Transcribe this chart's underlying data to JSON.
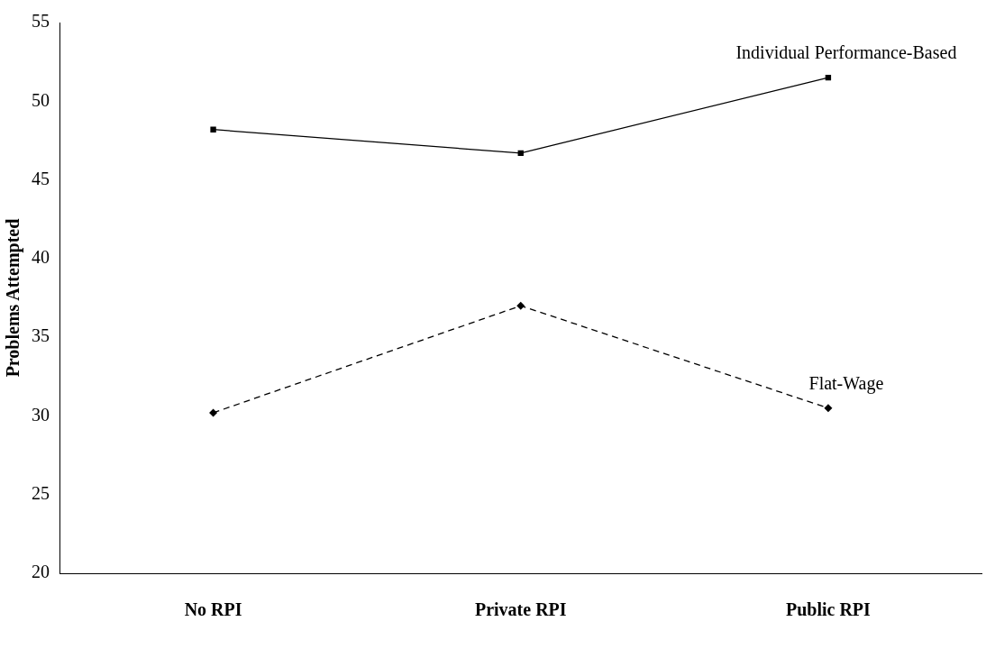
{
  "chart_data": {
    "type": "line",
    "ylabel": "Problems Attempted",
    "categories": [
      "No RPI",
      "Private RPI",
      "Public RPI"
    ],
    "series": [
      {
        "name": "Individual Performance-Based",
        "color": "#000000",
        "values": [
          48.2,
          46.7,
          51.5
        ],
        "marker": "square",
        "line_style": "solid"
      },
      {
        "name": "Flat-Wage",
        "color": "#000000",
        "values": [
          30.2,
          37.0,
          30.5
        ],
        "marker": "diamond",
        "line_style": "dashed"
      }
    ],
    "ylim": [
      20,
      55
    ],
    "yticks": [
      20,
      25,
      30,
      35,
      40,
      45,
      50,
      55
    ],
    "grid": false,
    "legend": false
  }
}
